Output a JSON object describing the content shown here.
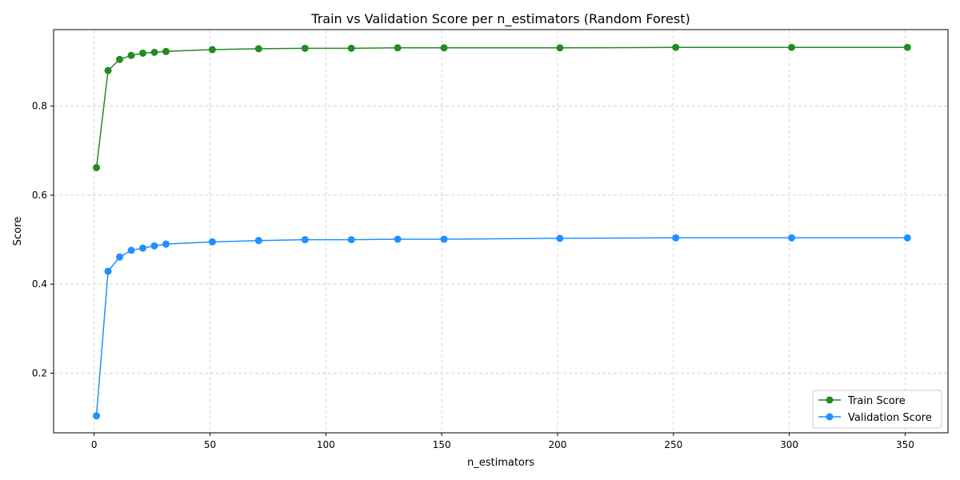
{
  "chart_data": {
    "type": "line",
    "title": "Train vs Validation Score per n_estimators (Random Forest)",
    "xlabel": "n_estimators",
    "ylabel": "Score",
    "xlim": [
      -17.5,
      368.5
    ],
    "ylim": [
      0.066,
      0.972
    ],
    "xticks": [
      0,
      50,
      100,
      150,
      200,
      250,
      300,
      350
    ],
    "yticks": [
      0.2,
      0.4,
      0.6,
      0.8
    ],
    "ytick_labels": [
      "0.2",
      "0.4",
      "0.6",
      "0.8"
    ],
    "grid": true,
    "legend_position": "bottom-right",
    "x": [
      1,
      6,
      11,
      16,
      21,
      26,
      31,
      51,
      71,
      91,
      111,
      131,
      151,
      201,
      251,
      301,
      351
    ],
    "series": [
      {
        "name": "Train Score",
        "color": "#228b22",
        "values": [
          0.662,
          0.88,
          0.905,
          0.914,
          0.919,
          0.921,
          0.923,
          0.927,
          0.929,
          0.93,
          0.93,
          0.931,
          0.931,
          0.931,
          0.932,
          0.932,
          0.932
        ]
      },
      {
        "name": "Validation Score",
        "color": "#1e90ff",
        "values": [
          0.104,
          0.429,
          0.461,
          0.476,
          0.481,
          0.486,
          0.49,
          0.495,
          0.498,
          0.5,
          0.5,
          0.501,
          0.501,
          0.503,
          0.504,
          0.504,
          0.504
        ]
      }
    ]
  }
}
